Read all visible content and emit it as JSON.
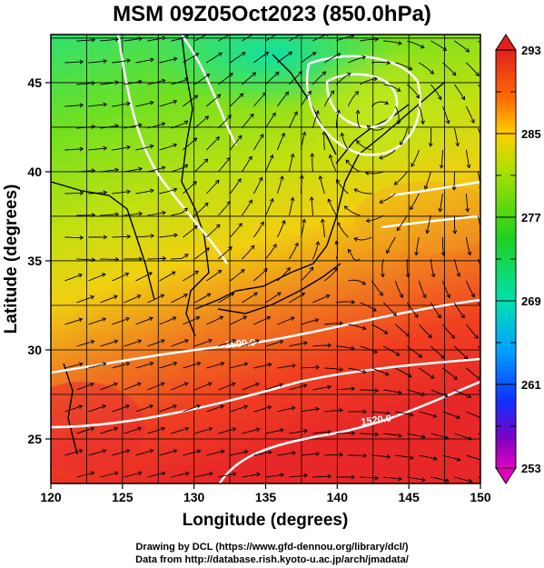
{
  "title": "MSM 09Z05Oct2023 (850.0hPa)",
  "x_axis": {
    "label": "Longitude (degrees)",
    "ticks": [
      "120",
      "125",
      "130",
      "135",
      "140",
      "145",
      "150"
    ]
  },
  "y_axis": {
    "label": "Latitude  (degrees)",
    "ticks": [
      "25",
      "30",
      "35",
      "40",
      "45"
    ]
  },
  "colorbar": {
    "labels": [
      "293",
      "285",
      "277",
      "269",
      "261",
      "253"
    ],
    "colors": [
      "#e02020",
      "#ff8000",
      "#ffe000",
      "#a0e000",
      "#20d020",
      "#00e0b0",
      "#00b0ff",
      "#2040ff",
      "#6000c0",
      "#e000c0"
    ]
  },
  "contours": {
    "labels": [
      "1500.0",
      "1520.0"
    ]
  },
  "credits": {
    "line1": "Drawing by DCL (https://www.gfd-dennou.org/library/dcl/)",
    "line2": "Data from http://database.rish.kyoto-u.ac.jp/arch/jmadata/"
  }
}
